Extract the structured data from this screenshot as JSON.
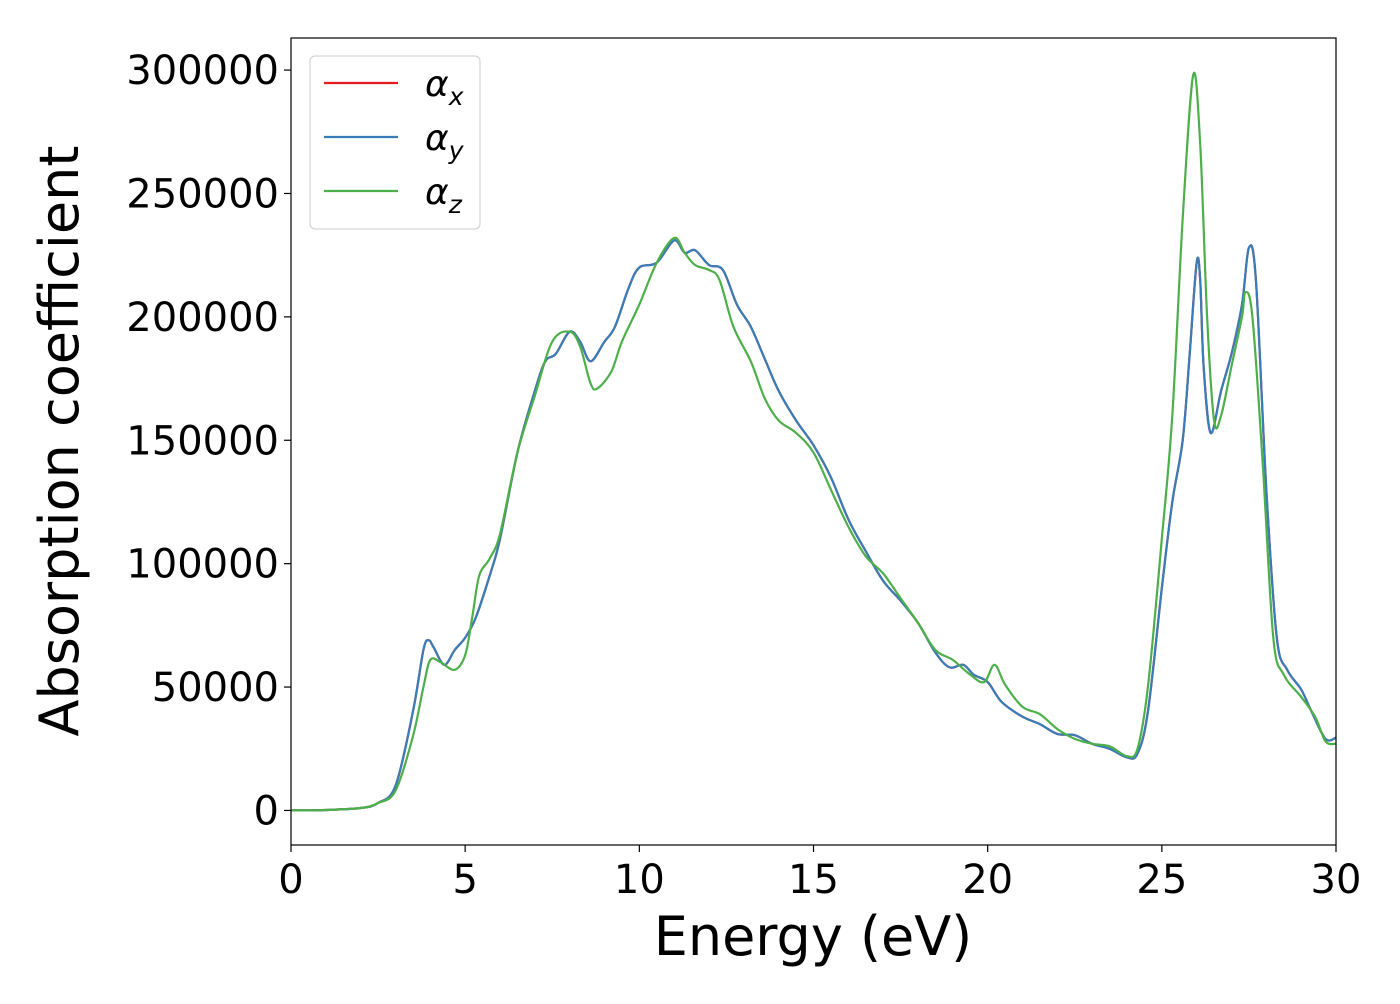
{
  "chart_data": {
    "type": "line",
    "title": "",
    "xlabel": "Energy (eV)",
    "ylabel": "Absorption coefficient",
    "xlim": [
      0,
      30
    ],
    "ylim": [
      -14000,
      313000
    ],
    "xticks": [
      0,
      5,
      10,
      15,
      20,
      25,
      30
    ],
    "yticks": [
      0,
      50000,
      100000,
      150000,
      200000,
      250000,
      300000
    ],
    "grid": false,
    "legend_position": "top-left",
    "series": [
      {
        "name": "α_x",
        "color": "#e41a1c",
        "x": [
          0,
          1,
          2,
          2.5,
          3,
          3.5,
          3.8,
          3.95,
          4.1,
          4.4,
          4.7,
          5,
          5.3,
          5.7,
          6,
          6.5,
          7,
          7.3,
          7.6,
          8,
          8.3,
          8.6,
          9,
          9.3,
          9.7,
          10,
          10.5,
          11,
          11.3,
          11.6,
          12,
          12.4,
          12.8,
          13.2,
          13.6,
          14,
          14.5,
          15,
          15.5,
          16,
          16.5,
          17,
          17.5,
          18,
          18.5,
          18.9,
          19.3,
          19.6,
          20,
          20.4,
          21,
          21.5,
          22,
          22.5,
          23,
          23.5,
          24,
          24.3,
          24.6,
          25,
          25.3,
          25.6,
          25.8,
          26,
          26.1,
          26.2,
          26.4,
          26.7,
          27,
          27.3,
          27.5,
          27.7,
          28,
          28.3,
          28.6,
          29,
          29.3,
          29.7,
          30
        ],
        "y": [
          0,
          200,
          1000,
          3000,
          10000,
          40000,
          65000,
          69000,
          66000,
          59000,
          65000,
          70000,
          78000,
          95000,
          110000,
          145000,
          170000,
          182000,
          185000,
          194000,
          190000,
          182000,
          190000,
          196000,
          212000,
          220000,
          222000,
          231000,
          226000,
          227000,
          221000,
          219000,
          205000,
          196000,
          183000,
          170000,
          158000,
          148000,
          135000,
          118000,
          105000,
          93000,
          85000,
          76000,
          64000,
          58000,
          59000,
          55000,
          52000,
          44000,
          38000,
          35000,
          31000,
          30500,
          27000,
          25000,
          21500,
          23000,
          40000,
          90000,
          125000,
          150000,
          185000,
          222000,
          215000,
          180000,
          153000,
          170000,
          185000,
          205000,
          228000,
          215000,
          130000,
          70000,
          57000,
          49000,
          40000,
          29000,
          29500
        ]
      },
      {
        "name": "α_y",
        "color": "#377eb8",
        "x": [
          0,
          1,
          2,
          2.5,
          3,
          3.5,
          3.8,
          3.95,
          4.1,
          4.4,
          4.7,
          5,
          5.3,
          5.7,
          6,
          6.5,
          7,
          7.3,
          7.6,
          8,
          8.3,
          8.6,
          9,
          9.3,
          9.7,
          10,
          10.5,
          11,
          11.3,
          11.6,
          12,
          12.4,
          12.8,
          13.2,
          13.6,
          14,
          14.5,
          15,
          15.5,
          16,
          16.5,
          17,
          17.5,
          18,
          18.5,
          18.9,
          19.3,
          19.6,
          20,
          20.4,
          21,
          21.5,
          22,
          22.5,
          23,
          23.5,
          24,
          24.3,
          24.6,
          25,
          25.3,
          25.6,
          25.8,
          26,
          26.1,
          26.2,
          26.4,
          26.7,
          27,
          27.3,
          27.5,
          27.7,
          28,
          28.3,
          28.6,
          29,
          29.3,
          29.7,
          30
        ],
        "y": [
          0,
          200,
          1000,
          3000,
          10000,
          40000,
          65000,
          69000,
          66000,
          59000,
          65000,
          70000,
          78000,
          95000,
          110000,
          145000,
          170000,
          182000,
          185000,
          194000,
          190000,
          182000,
          190000,
          196000,
          212000,
          220000,
          222000,
          231000,
          226000,
          227000,
          221000,
          219000,
          205000,
          196000,
          183000,
          170000,
          158000,
          148000,
          135000,
          118000,
          105000,
          93000,
          85000,
          76000,
          64000,
          58000,
          59000,
          55000,
          52000,
          44000,
          38000,
          35000,
          31000,
          30500,
          27000,
          25000,
          21500,
          23000,
          40000,
          90000,
          125000,
          150000,
          185000,
          222000,
          215000,
          180000,
          153000,
          170000,
          185000,
          205000,
          228000,
          215000,
          130000,
          70000,
          57000,
          49000,
          40000,
          29000,
          29500
        ]
      },
      {
        "name": "α_z",
        "color": "#4daf4a",
        "x": [
          0,
          1,
          2,
          2.5,
          3,
          3.5,
          3.8,
          4,
          4.3,
          4.7,
          5,
          5.2,
          5.4,
          5.7,
          6,
          6.5,
          7,
          7.5,
          8,
          8.3,
          8.6,
          8.8,
          9.2,
          9.5,
          10,
          10.5,
          11,
          11.3,
          11.6,
          12,
          12.3,
          12.7,
          13.2,
          13.6,
          14,
          14.5,
          15,
          15.5,
          16,
          16.5,
          17,
          17.5,
          18,
          18.5,
          19,
          19.5,
          19.9,
          20.2,
          20.5,
          21,
          21.5,
          22,
          22.5,
          23,
          23.5,
          24,
          24.3,
          24.6,
          25,
          25.3,
          25.6,
          25.9,
          26.1,
          26.3,
          26.5,
          26.7,
          27,
          27.3,
          27.4,
          27.6,
          27.9,
          28.2,
          28.5,
          29,
          29.4,
          29.7,
          30
        ],
        "y": [
          0,
          200,
          1000,
          3000,
          8000,
          30000,
          50000,
          61000,
          60000,
          57000,
          63000,
          78000,
          95000,
          102000,
          112000,
          145000,
          168000,
          190000,
          194000,
          188000,
          173000,
          171000,
          178000,
          190000,
          205000,
          222000,
          232000,
          226000,
          221000,
          219000,
          215000,
          196000,
          182000,
          167000,
          158000,
          153000,
          145000,
          130000,
          115000,
          103000,
          96000,
          86000,
          76000,
          65000,
          61000,
          55000,
          52000,
          59000,
          51000,
          42000,
          39000,
          33000,
          29000,
          27000,
          26000,
          22000,
          25000,
          50000,
          110000,
          160000,
          240000,
          298000,
          270000,
          200000,
          158000,
          160000,
          180000,
          200000,
          210000,
          200000,
          140000,
          70000,
          55000,
          46000,
          38000,
          28000,
          27000
        ]
      }
    ]
  }
}
